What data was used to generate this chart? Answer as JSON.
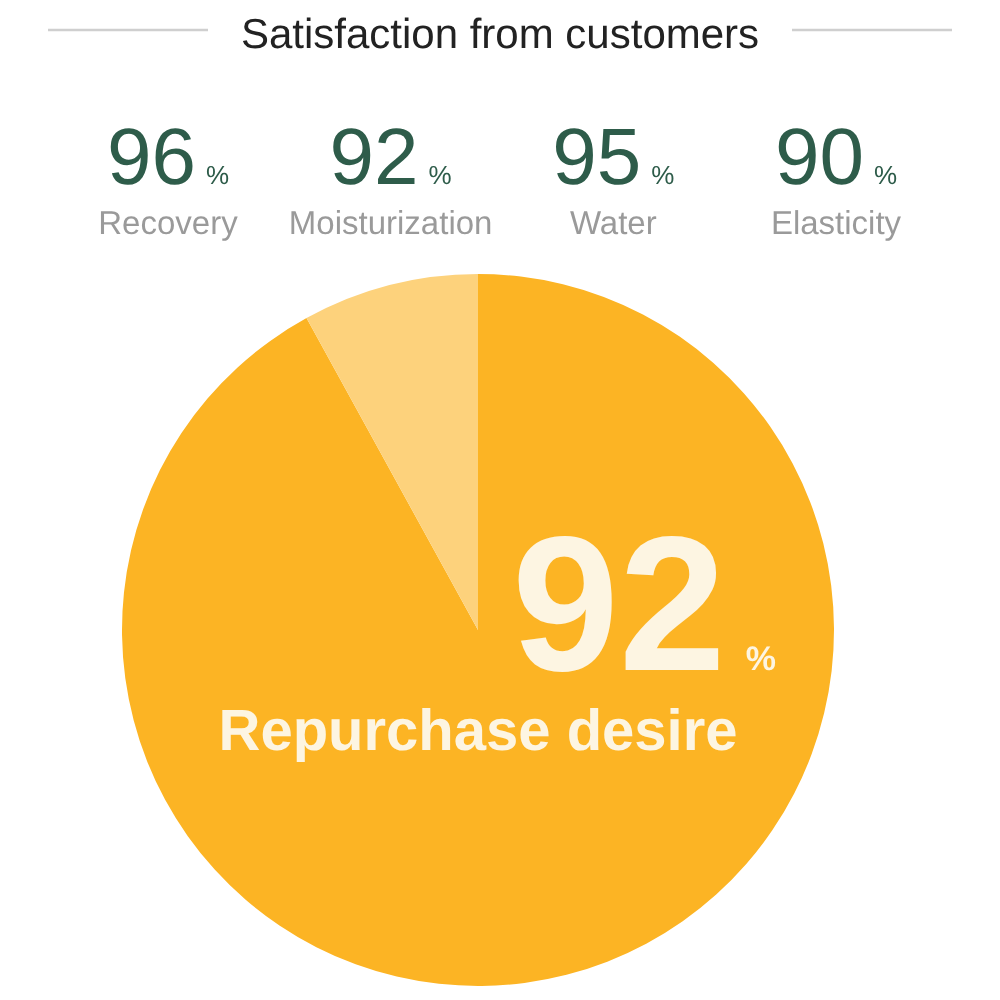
{
  "chart_data": [
    {
      "type": "other",
      "title": "Satisfaction from customers",
      "categories": [
        "Recovery",
        "Moisturization",
        "Water",
        "Elasticity"
      ],
      "values": [
        96,
        92,
        95,
        90
      ],
      "value_labels": [
        "96%",
        "92%",
        "95%",
        "90%"
      ]
    },
    {
      "type": "pie",
      "categories": [
        "Repurchase desire",
        null
      ],
      "values": [
        92,
        8
      ],
      "colors": [
        "#fcb424",
        "#fdd27c"
      ],
      "value_labels": [
        "92%",
        null
      ]
    }
  ]
}
